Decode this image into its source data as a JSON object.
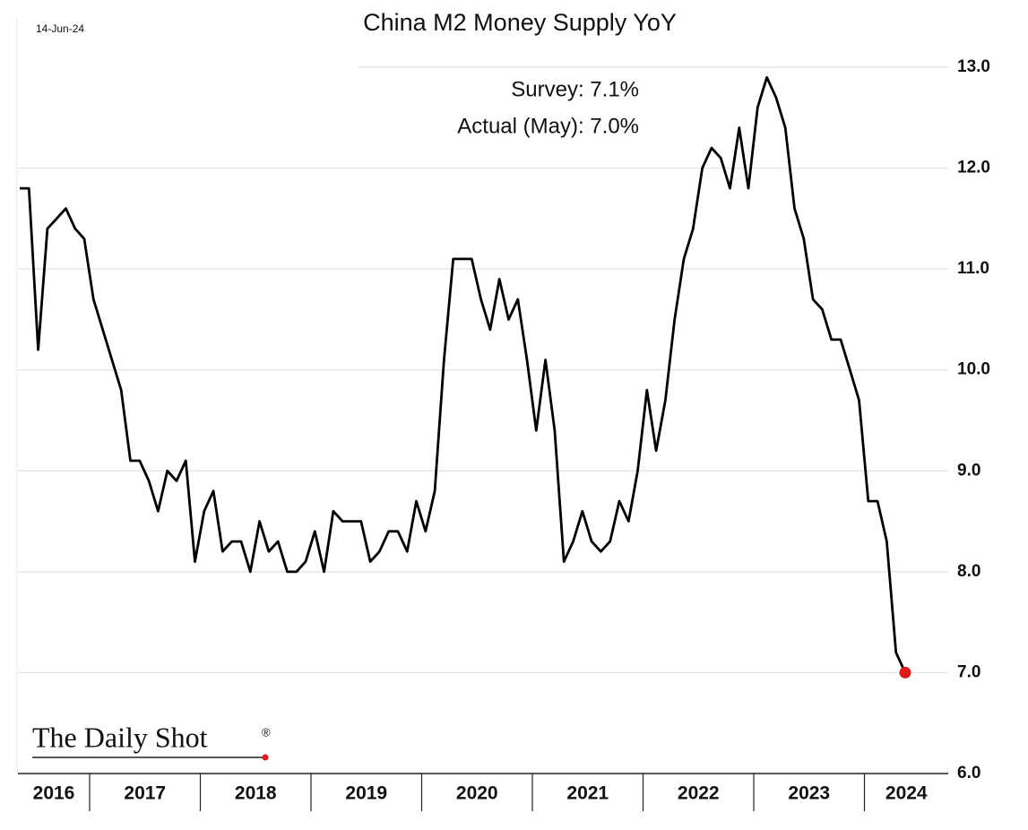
{
  "chart_data": {
    "type": "line",
    "date_stamp": "14-Jun-24",
    "title": "China M2 Money Supply YoY",
    "annotations": [
      "Survey:  7.1%",
      "Actual (May):  7.0%"
    ],
    "source": "The Daily Shot",
    "source_mark": "®",
    "year_labels": [
      "2016",
      "2017",
      "2018",
      "2019",
      "2020",
      "2021",
      "2022",
      "2023",
      "2024"
    ],
    "color": "#000000",
    "marker_color": "#e0191b",
    "ylim": [
      6,
      13
    ],
    "yticks": [
      {
        "value": 6,
        "label": "6.0"
      },
      {
        "value": 7,
        "label": "7.0"
      },
      {
        "value": 8,
        "label": "8.0"
      },
      {
        "value": 9,
        "label": "9.0"
      },
      {
        "value": 10,
        "label": "10.0"
      },
      {
        "value": 11,
        "label": "11.0"
      },
      {
        "value": 12,
        "label": "12.0"
      },
      {
        "value": 13,
        "label": "13.0"
      }
    ],
    "grid": true,
    "values": [
      11.8,
      11.8,
      10.2,
      11.4,
      11.5,
      11.6,
      11.4,
      11.3,
      10.7,
      10.4,
      10.1,
      9.8,
      9.1,
      9.1,
      8.9,
      8.6,
      9.0,
      8.9,
      9.1,
      8.1,
      8.6,
      8.8,
      8.2,
      8.3,
      8.3,
      8.0,
      8.5,
      8.2,
      8.3,
      8.0,
      8.0,
      8.1,
      8.4,
      8.0,
      8.6,
      8.5,
      8.5,
      8.5,
      8.1,
      8.2,
      8.4,
      8.4,
      8.2,
      8.7,
      8.4,
      8.8,
      10.1,
      11.1,
      11.1,
      11.1,
      10.7,
      10.4,
      10.9,
      10.5,
      10.7,
      10.1,
      9.4,
      10.1,
      9.4,
      8.1,
      8.3,
      8.6,
      8.3,
      8.2,
      8.3,
      8.7,
      8.5,
      9.0,
      9.8,
      9.2,
      9.7,
      10.5,
      11.1,
      11.4,
      12.0,
      12.2,
      12.1,
      11.8,
      12.4,
      11.8,
      12.6,
      12.9,
      12.7,
      12.4,
      11.6,
      11.3,
      10.7,
      10.6,
      10.3,
      10.3,
      10.0,
      9.7,
      8.7,
      8.7,
      8.3,
      7.2,
      7.0
    ]
  }
}
